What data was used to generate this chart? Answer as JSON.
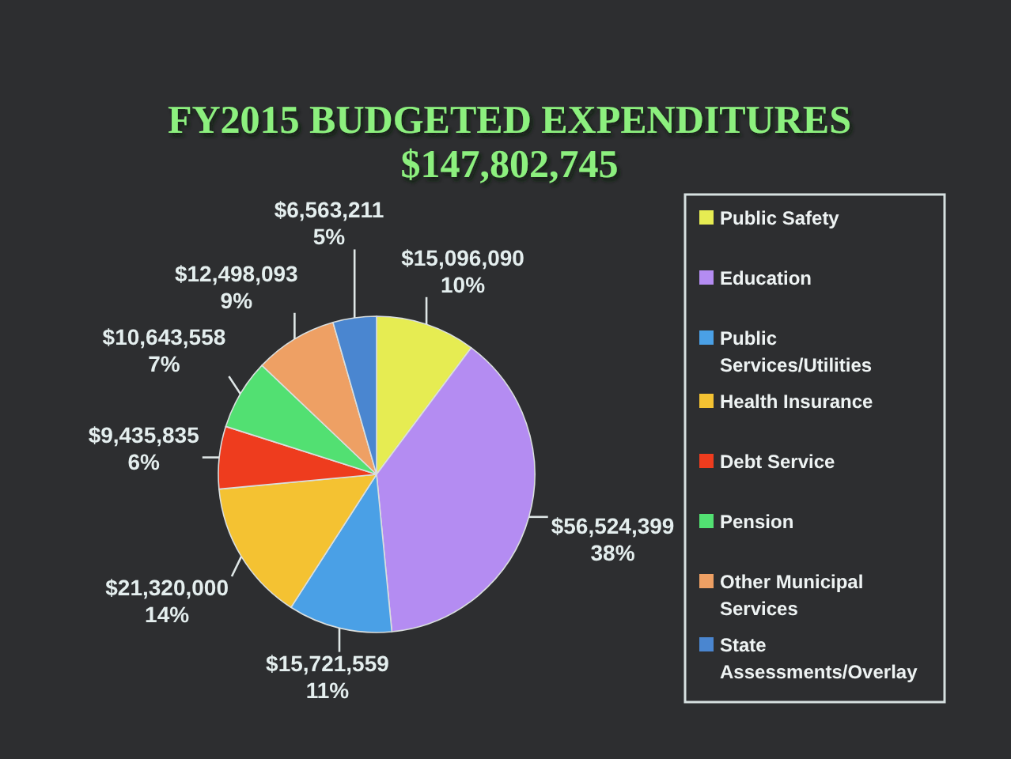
{
  "chart_data": {
    "type": "pie",
    "title": "FY2015 BUDGETED EXPENDITURES",
    "subtitle": "$147,802,745",
    "categories": [
      "Public Safety",
      "Education",
      "Public Services/Utilities",
      "Health Insurance",
      "Debt Service",
      "Pension",
      "Other Municipal Services",
      "State Assessments/Overlay"
    ],
    "values": [
      15096090,
      56524399,
      15721559,
      21320000,
      9435835,
      10643558,
      12498093,
      6563211
    ],
    "colors": [
      "#e6ec52",
      "#b48cf2",
      "#4aa0e6",
      "#f4c232",
      "#ee3c1e",
      "#52e072",
      "#eea064",
      "#4a86d0"
    ],
    "value_labels": [
      "$15,096,090\n10%",
      "$56,524,399\n38%",
      "$15,721,559\n11%",
      "$21,320,000\n14%",
      "$9,435,835\n6%",
      "$10,643,558\n7%",
      "$12,498,093\n9%",
      "$6,563,211\n5%"
    ],
    "legend": "right"
  }
}
